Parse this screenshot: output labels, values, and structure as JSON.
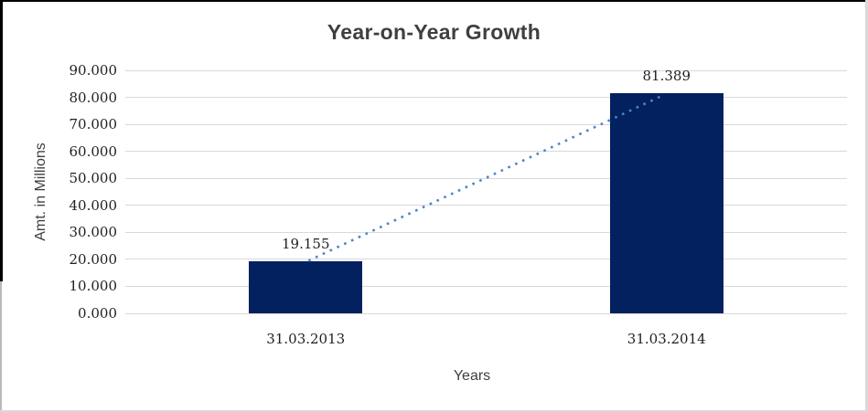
{
  "chart_data": {
    "type": "bar",
    "title": "Year-on-Year Growth",
    "xlabel": "Years",
    "ylabel": "Amt. in Millions",
    "categories": [
      "31.03.2013",
      "31.03.2014"
    ],
    "values": [
      19.155,
      81.389
    ],
    "value_labels": [
      "19.155",
      "81.389"
    ],
    "ylim": [
      0,
      90
    ],
    "ytick_step": 10,
    "ytick_labels": [
      "0.000",
      "10.000",
      "20.000",
      "30.000",
      "40.000",
      "50.000",
      "60.000",
      "70.000",
      "80.000",
      "90.000"
    ],
    "grid": true,
    "legend": "none",
    "bar_color": "#02215e",
    "gridline_color": "#d9d9d9",
    "trendline": {
      "show": true,
      "style": "dotted",
      "color": "#4a86c8",
      "from_value": 19.155,
      "to_value": 81.389
    },
    "title_color": "#3f3f3f",
    "axis_title_color": "#3f3f3f",
    "tick_label_color": "#1f1f1f"
  }
}
